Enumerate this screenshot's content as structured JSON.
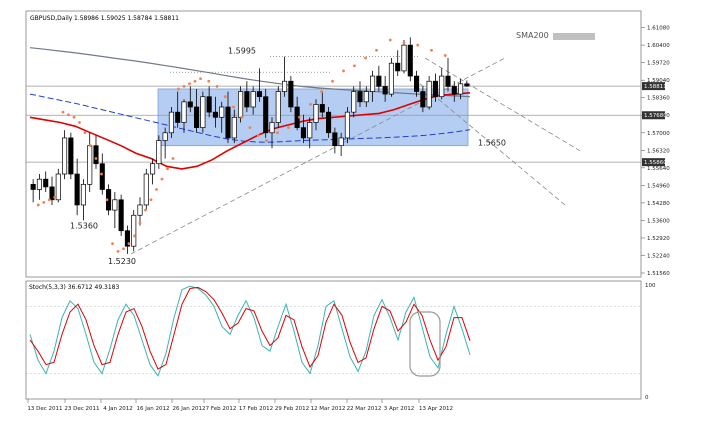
{
  "header": {
    "symbol": "GBPUSD,Daily",
    "ohlc": "1.58986 1.59025 1.58784 1.58811",
    "sma_label": "SMA200"
  },
  "colors": {
    "candle_up": "#ffffff",
    "candle_down": "#000000",
    "sma200": "#707a88",
    "sma_red": "#e00000",
    "sma_blue": "#1f3fd0",
    "sar": "#f08050",
    "range_box": "#a8c4f0",
    "stoch_main": "#39b4b4",
    "stoch_signal": "#e00000",
    "trend": "#888888"
  },
  "chart_data": [
    {
      "type": "candlestick",
      "title": "GBPUSD,Daily",
      "y_ticks": [
        "1.61080",
        "1.60400",
        "1.59720",
        "1.59040",
        "1.58360",
        "1.57680",
        "1.57000",
        "1.56320",
        "1.55640",
        "1.54960",
        "1.54280",
        "1.53600",
        "1.52920",
        "1.52240",
        "1.51560"
      ],
      "ylim": [
        1.5156,
        1.6122
      ],
      "price_labels": [
        "1.58811",
        "1.57680",
        "1.55860"
      ],
      "annotations": [
        "1.5995",
        "1.5650",
        "1.5360",
        "1.5230"
      ],
      "range_box": {
        "top": 1.587,
        "bottom": 1.565
      },
      "sma200": [
        1.603,
        1.6024,
        1.6017,
        1.601,
        1.6002,
        1.5994,
        1.5986,
        1.5978,
        1.5969,
        1.596,
        1.5951,
        1.5941,
        1.5931,
        1.5921,
        1.5911,
        1.5902,
        1.5894,
        1.5886,
        1.5879,
        1.5874,
        1.587,
        1.5866,
        1.5862,
        1.5859,
        1.5856,
        1.5852,
        1.5849,
        1.5846,
        1.5843,
        1.584
      ],
      "sma_red": [
        1.576,
        1.575,
        1.574,
        1.5725,
        1.57,
        1.5675,
        1.565,
        1.562,
        1.56,
        1.557,
        1.556,
        1.557,
        1.5595,
        1.563,
        1.566,
        1.569,
        1.5715,
        1.573,
        1.5745,
        1.5755,
        1.576,
        1.5765,
        1.577,
        1.5775,
        1.579,
        1.581,
        1.583,
        1.5845,
        1.585,
        1.5855
      ],
      "sma_blue": [
        1.585,
        1.5838,
        1.5826,
        1.5814,
        1.58,
        1.5786,
        1.5772,
        1.5758,
        1.5744,
        1.573,
        1.5716,
        1.5702,
        1.5688,
        1.5676,
        1.5668,
        1.5664,
        1.5664,
        1.5667,
        1.567,
        1.5672,
        1.5674,
        1.5676,
        1.5678,
        1.568,
        1.5683,
        1.5686,
        1.569,
        1.5696,
        1.5703,
        1.5712
      ],
      "candles": [
        [
          1.55,
          1.552,
          1.543,
          1.548
        ],
        [
          1.548,
          1.554,
          1.544,
          1.552
        ],
        [
          1.552,
          1.555,
          1.547,
          1.549
        ],
        [
          1.549,
          1.553,
          1.542,
          1.544
        ],
        [
          1.544,
          1.556,
          1.543,
          1.554
        ],
        [
          1.554,
          1.571,
          1.552,
          1.568
        ],
        [
          1.568,
          1.57,
          1.552,
          1.554
        ],
        [
          1.554,
          1.56,
          1.538,
          1.542
        ],
        [
          1.542,
          1.552,
          1.536,
          1.55
        ],
        [
          1.55,
          1.57,
          1.547,
          1.565
        ],
        [
          1.565,
          1.569,
          1.556,
          1.558
        ],
        [
          1.558,
          1.562,
          1.546,
          1.548
        ],
        [
          1.548,
          1.55,
          1.538,
          1.54
        ],
        [
          1.54,
          1.547,
          1.533,
          1.544
        ],
        [
          1.544,
          1.546,
          1.53,
          1.532
        ],
        [
          1.532,
          1.534,
          1.523,
          1.526
        ],
        [
          1.526,
          1.54,
          1.524,
          1.538
        ],
        [
          1.538,
          1.545,
          1.534,
          1.542
        ],
        [
          1.542,
          1.556,
          1.54,
          1.554
        ],
        [
          1.554,
          1.56,
          1.55,
          1.558
        ],
        [
          1.558,
          1.569,
          1.556,
          1.567
        ],
        [
          1.567,
          1.572,
          1.56,
          1.57
        ],
        [
          1.57,
          1.58,
          1.568,
          1.578
        ],
        [
          1.578,
          1.586,
          1.572,
          1.574
        ],
        [
          1.574,
          1.583,
          1.57,
          1.582
        ],
        [
          1.582,
          1.588,
          1.578,
          1.58
        ],
        [
          1.58,
          1.587,
          1.57,
          1.572
        ],
        [
          1.572,
          1.586,
          1.57,
          1.584
        ],
        [
          1.584,
          1.588,
          1.576,
          1.578
        ],
        [
          1.578,
          1.584,
          1.572,
          1.576
        ],
        [
          1.576,
          1.582,
          1.57,
          1.58
        ],
        [
          1.58,
          1.586,
          1.566,
          1.568
        ],
        [
          1.568,
          1.579,
          1.566,
          1.576
        ],
        [
          1.576,
          1.588,
          1.574,
          1.586
        ],
        [
          1.586,
          1.59,
          1.578,
          1.58
        ],
        [
          1.58,
          1.588,
          1.577,
          1.586
        ],
        [
          1.586,
          1.595,
          1.582,
          1.584
        ],
        [
          1.584,
          1.587,
          1.568,
          1.57
        ],
        [
          1.57,
          1.576,
          1.564,
          1.574
        ],
        [
          1.574,
          1.588,
          1.572,
          1.586
        ],
        [
          1.586,
          1.5995,
          1.584,
          1.59
        ],
        [
          1.59,
          1.592,
          1.578,
          1.58
        ],
        [
          1.58,
          1.584,
          1.571,
          1.572
        ],
        [
          1.572,
          1.577,
          1.566,
          1.568
        ],
        [
          1.568,
          1.576,
          1.564,
          1.574
        ],
        [
          1.574,
          1.583,
          1.571,
          1.581
        ],
        [
          1.581,
          1.586,
          1.576,
          1.578
        ],
        [
          1.578,
          1.58,
          1.568,
          1.57
        ],
        [
          1.57,
          1.572,
          1.562,
          1.565
        ],
        [
          1.565,
          1.57,
          1.561,
          1.568
        ],
        [
          1.568,
          1.58,
          1.566,
          1.578
        ],
        [
          1.578,
          1.588,
          1.576,
          1.586
        ],
        [
          1.586,
          1.59,
          1.58,
          1.582
        ],
        [
          1.582,
          1.588,
          1.58,
          1.586
        ],
        [
          1.586,
          1.594,
          1.582,
          1.592
        ],
        [
          1.592,
          1.596,
          1.586,
          1.588
        ],
        [
          1.588,
          1.592,
          1.582,
          1.585
        ],
        [
          1.585,
          1.599,
          1.584,
          1.597
        ],
        [
          1.597,
          1.602,
          1.592,
          1.594
        ],
        [
          1.594,
          1.606,
          1.593,
          1.604
        ],
        [
          1.604,
          1.607,
          1.59,
          1.592
        ],
        [
          1.592,
          1.594,
          1.584,
          1.586
        ],
        [
          1.586,
          1.588,
          1.578,
          1.58
        ],
        [
          1.58,
          1.592,
          1.579,
          1.59
        ],
        [
          1.59,
          1.593,
          1.582,
          1.584
        ],
        [
          1.584,
          1.595,
          1.583,
          1.592
        ],
        [
          1.592,
          1.599,
          1.586,
          1.588
        ],
        [
          1.588,
          1.59,
          1.582,
          1.585
        ],
        [
          1.585,
          1.591,
          1.583,
          1.589
        ],
        [
          1.589,
          1.5903,
          1.5878,
          1.5881
        ]
      ],
      "sar_points": [
        [
          3,
          1.542
        ],
        [
          5,
          1.543
        ],
        [
          7,
          1.544
        ],
        [
          9,
          1.545
        ],
        [
          12,
          1.578
        ],
        [
          14,
          1.577
        ],
        [
          16,
          1.576
        ],
        [
          18,
          1.574
        ],
        [
          20,
          1.57
        ],
        [
          22,
          1.565
        ],
        [
          24,
          1.56
        ],
        [
          26,
          1.554
        ],
        [
          28,
          1.544
        ],
        [
          30,
          1.527
        ],
        [
          32,
          1.524
        ],
        [
          34,
          1.525
        ],
        [
          36,
          1.527
        ],
        [
          38,
          1.53
        ],
        [
          40,
          1.535
        ],
        [
          42,
          1.54
        ],
        [
          44,
          1.544
        ],
        [
          46,
          1.548
        ],
        [
          48,
          1.552
        ],
        [
          50,
          1.556
        ],
        [
          52,
          1.56
        ],
        [
          54,
          1.587
        ],
        [
          56,
          1.588
        ],
        [
          58,
          1.589
        ],
        [
          60,
          1.59
        ],
        [
          62,
          1.591
        ],
        [
          65,
          1.59
        ],
        [
          68,
          1.588
        ],
        [
          71,
          1.584
        ],
        [
          74,
          1.58
        ],
        [
          77,
          1.576
        ],
        [
          80,
          1.572
        ],
        [
          83,
          1.569
        ],
        [
          86,
          1.567
        ],
        [
          90,
          1.57
        ],
        [
          94,
          1.572
        ],
        [
          98,
          1.576
        ],
        [
          102,
          1.581
        ],
        [
          106,
          1.586
        ],
        [
          110,
          1.59
        ],
        [
          114,
          1.594
        ],
        [
          118,
          1.596
        ],
        [
          122,
          1.599
        ],
        [
          126,
          1.602
        ],
        [
          131,
          1.606
        ],
        [
          136,
          1.605
        ],
        [
          141,
          1.604
        ],
        [
          146,
          1.602
        ],
        [
          151,
          1.6
        ]
      ],
      "x_ticks": [
        "13 Dec 2011",
        "23 Dec 2011",
        "4 Jan 2012",
        "16 Jan 2012",
        "26 Jan 2012",
        "7 Feb 2012",
        "17 Feb 2012",
        "29 Feb 2012",
        "12 Mar 2012",
        "22 Mar 2012",
        "3 Apr 2012",
        "13 Apr 2012"
      ]
    },
    {
      "type": "line",
      "title": "Stoch(5,3,3) 36.6712 49.3183",
      "y_ticks": [
        "100",
        "0"
      ],
      "ylim": [
        0,
        100
      ],
      "series": [
        {
          "values": [
            55,
            32,
            20,
            40,
            70,
            85,
            78,
            55,
            30,
            20,
            42,
            68,
            82,
            72,
            50,
            28,
            18,
            38,
            70,
            95,
            98,
            96,
            90,
            80,
            62,
            55,
            72,
            85,
            70,
            45,
            40,
            62,
            82,
            58,
            30,
            20,
            45,
            80,
            85,
            60,
            35,
            22,
            40,
            72,
            86,
            70,
            50,
            75,
            88,
            62,
            35,
            25,
            55,
            80,
            60,
            36.6712
          ]
        },
        {
          "values": [
            50,
            40,
            28,
            30,
            55,
            75,
            82,
            68,
            45,
            28,
            30,
            55,
            75,
            78,
            62,
            40,
            24,
            28,
            55,
            82,
            96,
            97,
            93,
            86,
            74,
            60,
            65,
            78,
            76,
            58,
            45,
            52,
            72,
            68,
            44,
            26,
            36,
            66,
            82,
            72,
            48,
            30,
            34,
            60,
            80,
            76,
            58,
            66,
            82,
            72,
            50,
            32,
            44,
            70,
            70,
            49.3183
          ]
        }
      ]
    }
  ]
}
